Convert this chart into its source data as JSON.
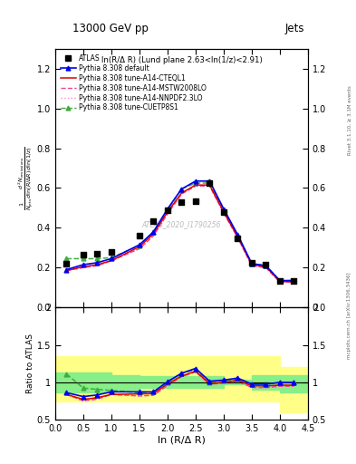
{
  "title_top": "13000 GeV pp",
  "title_right": "Jets",
  "inner_title": "ln(R/Δ R) (Lund plane 2.63<ln(1/z)<2.91)",
  "watermark": "ATLAS_2020_I1790256",
  "right_label_top": "Rivet 3.1.10, ≥ 3.1M events",
  "right_label_bottom": "mcplots.cern.ch [arXiv:1306.3436]",
  "ylabel_main": "$\\frac{1}{N_\\mathrm{jets}}\\frac{d^2N_\\mathrm{emissions}}{d\\ln(R/\\Delta R)\\,d\\ln(1/z)}$",
  "ylabel_ratio": "Ratio to ATLAS",
  "xlabel": "ln (R/Δ R)",
  "xlim": [
    0.0,
    4.5
  ],
  "ylim_main": [
    0.0,
    1.3
  ],
  "ylim_ratio": [
    0.5,
    2.0
  ],
  "x_atlas": [
    0.2,
    0.5,
    0.75,
    1.0,
    1.5,
    1.75,
    2.0,
    2.25,
    2.5,
    2.75,
    3.0,
    3.25,
    3.5,
    3.75,
    4.0,
    4.25
  ],
  "y_atlas": [
    0.22,
    0.265,
    0.27,
    0.28,
    0.36,
    0.435,
    0.49,
    0.53,
    0.535,
    0.625,
    0.48,
    0.345,
    0.225,
    0.215,
    0.135,
    0.135
  ],
  "x_mc": [
    0.2,
    0.5,
    0.75,
    1.0,
    1.5,
    1.75,
    2.0,
    2.25,
    2.5,
    2.75,
    3.0,
    3.25,
    3.5,
    3.75,
    4.0,
    4.25
  ],
  "y_default": [
    0.19,
    0.215,
    0.225,
    0.245,
    0.315,
    0.38,
    0.495,
    0.595,
    0.635,
    0.635,
    0.495,
    0.365,
    0.22,
    0.21,
    0.135,
    0.135
  ],
  "y_cteq": [
    0.185,
    0.205,
    0.215,
    0.235,
    0.305,
    0.37,
    0.48,
    0.575,
    0.615,
    0.615,
    0.48,
    0.355,
    0.215,
    0.205,
    0.13,
    0.13
  ],
  "y_mstw": [
    0.185,
    0.2,
    0.21,
    0.235,
    0.295,
    0.36,
    0.47,
    0.57,
    0.61,
    0.61,
    0.475,
    0.35,
    0.21,
    0.2,
    0.128,
    0.128
  ],
  "y_nnpdf": [
    0.185,
    0.2,
    0.21,
    0.235,
    0.295,
    0.36,
    0.47,
    0.57,
    0.61,
    0.61,
    0.475,
    0.35,
    0.21,
    0.2,
    0.128,
    0.128
  ],
  "y_cuetp": [
    0.245,
    0.245,
    0.245,
    0.25,
    0.31,
    0.38,
    0.49,
    0.595,
    0.625,
    0.625,
    0.49,
    0.36,
    0.22,
    0.21,
    0.135,
    0.135
  ],
  "color_default": "#0000ee",
  "color_cteq": "#dd0000",
  "color_mstw": "#ee4499",
  "color_nnpdf": "#ff88cc",
  "color_cuetp": "#44aa44",
  "band_x": [
    0.0,
    0.5,
    1.0,
    1.5,
    2.0,
    2.5,
    3.0,
    3.5,
    4.0,
    4.5
  ],
  "band_yellow_lo": [
    0.75,
    0.75,
    0.75,
    0.75,
    0.75,
    0.75,
    0.75,
    0.75,
    0.6,
    0.6
  ],
  "band_yellow_hi": [
    1.35,
    1.35,
    1.35,
    1.35,
    1.35,
    1.35,
    1.35,
    1.35,
    1.2,
    1.2
  ],
  "band_green_lo": [
    0.87,
    0.87,
    0.9,
    0.93,
    0.93,
    0.93,
    0.97,
    0.9,
    0.87,
    0.87
  ],
  "band_green_hi": [
    1.13,
    1.13,
    1.1,
    1.08,
    1.08,
    1.08,
    1.04,
    1.1,
    1.1,
    1.1
  ]
}
